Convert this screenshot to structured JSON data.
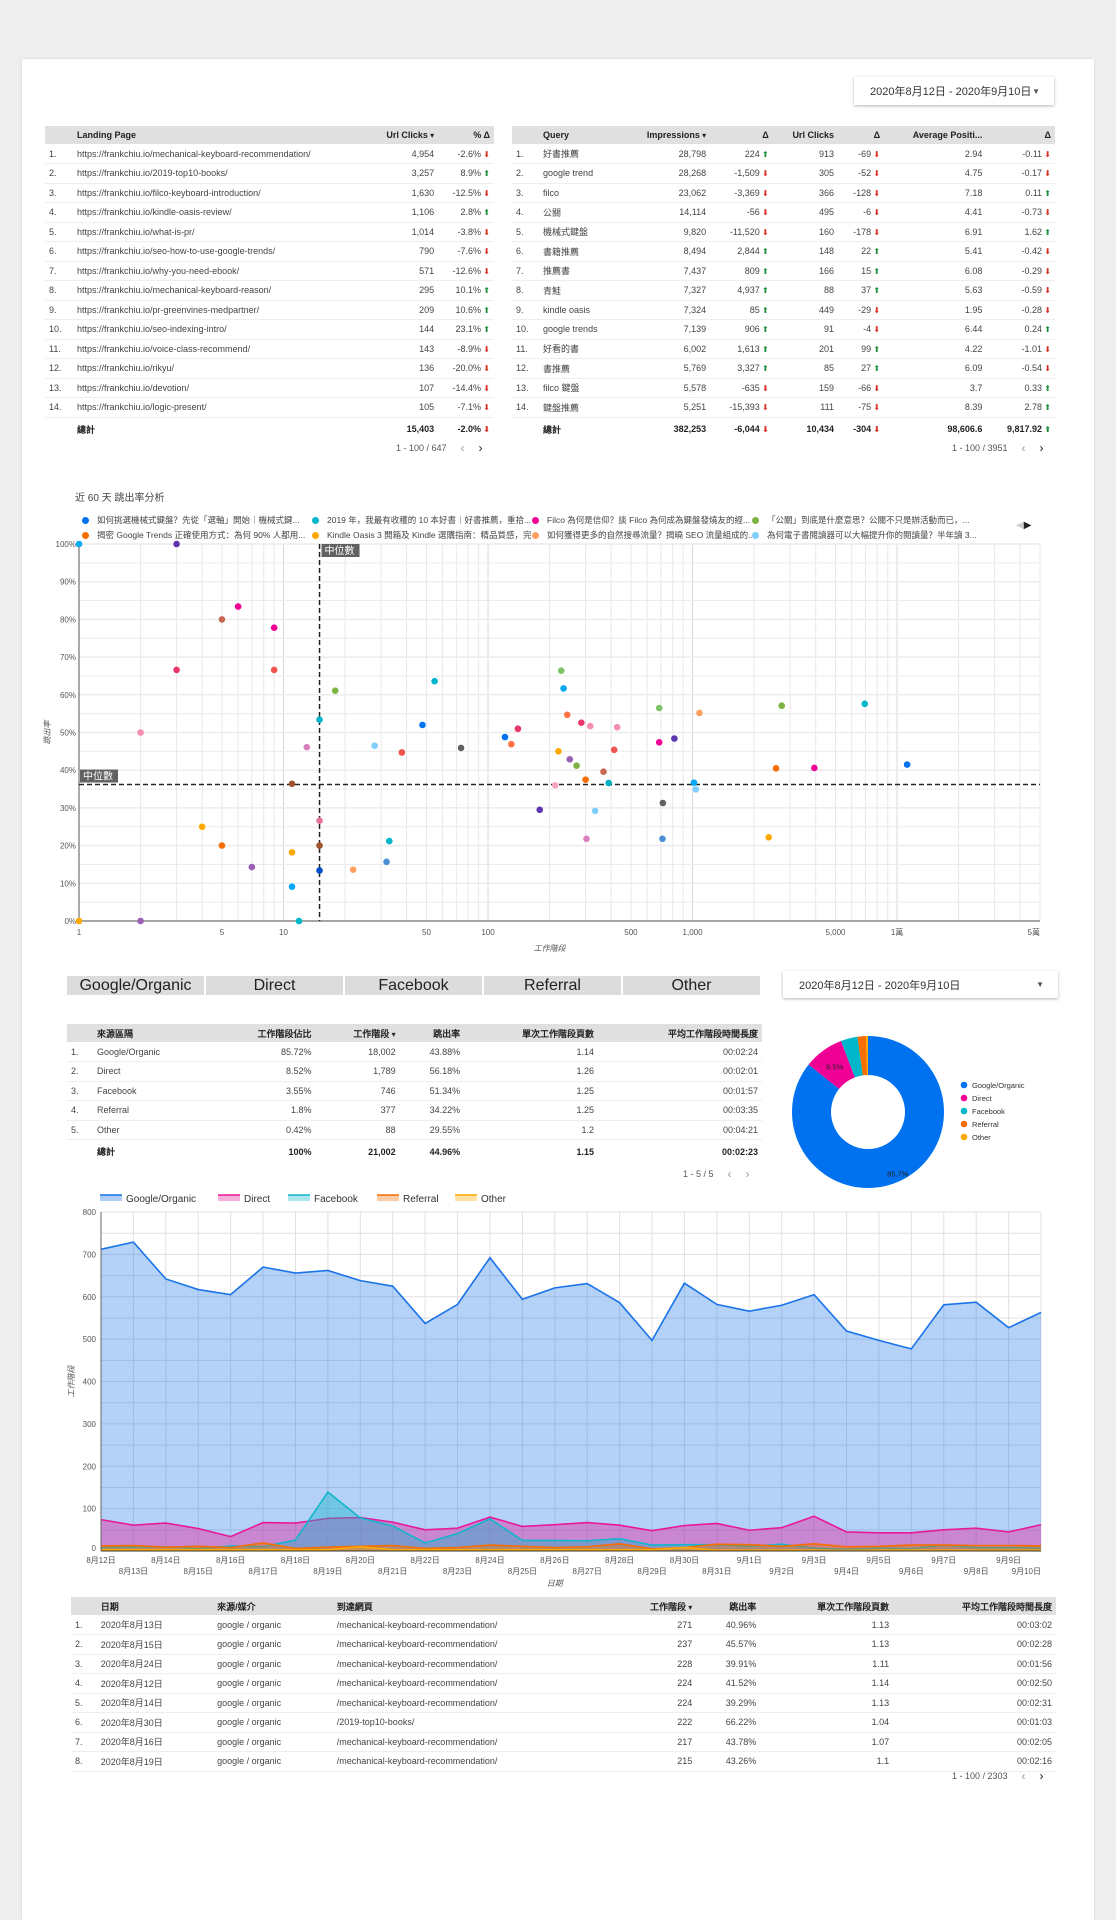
{
  "date_range": "2020年8月12日 - 2020年9月10日",
  "landing_table": {
    "headers": [
      "Landing Page",
      "Url Clicks",
      "% Δ"
    ],
    "rows": [
      [
        "1.",
        "https://frankchiu.io/mechanical-keyboard-recommendation/",
        "4,954",
        "-2.6%",
        "down"
      ],
      [
        "2.",
        "https://frankchiu.io/2019-top10-books/",
        "3,257",
        "8.9%",
        "up"
      ],
      [
        "3.",
        "https://frankchiu.io/filco-keyboard-introduction/",
        "1,630",
        "-12.5%",
        "down"
      ],
      [
        "4.",
        "https://frankchiu.io/kindle-oasis-review/",
        "1,106",
        "2.8%",
        "up"
      ],
      [
        "5.",
        "https://frankchiu.io/what-is-pr/",
        "1,014",
        "-3.8%",
        "down"
      ],
      [
        "6.",
        "https://frankchiu.io/seo-how-to-use-google-trends/",
        "790",
        "-7.6%",
        "down"
      ],
      [
        "7.",
        "https://frankchiu.io/why-you-need-ebook/",
        "571",
        "-12.6%",
        "down"
      ],
      [
        "8.",
        "https://frankchiu.io/mechanical-keyboard-reason/",
        "295",
        "10.1%",
        "up"
      ],
      [
        "9.",
        "https://frankchiu.io/pr-greenvines-medpartner/",
        "209",
        "10.6%",
        "up"
      ],
      [
        "10.",
        "https://frankchiu.io/seo-indexing-intro/",
        "144",
        "23.1%",
        "up"
      ],
      [
        "11.",
        "https://frankchiu.io/voice-class-recommend/",
        "143",
        "-8.9%",
        "down"
      ],
      [
        "12.",
        "https://frankchiu.io/rikyu/",
        "136",
        "-20.0%",
        "down"
      ],
      [
        "13.",
        "https://frankchiu.io/devotion/",
        "107",
        "-14.4%",
        "down"
      ],
      [
        "14.",
        "https://frankchiu.io/logic-present/",
        "105",
        "-7.1%",
        "down"
      ]
    ],
    "total": [
      "總計",
      "15,403",
      "-2.0%",
      "down"
    ],
    "pagination": "1 - 100 / 647"
  },
  "query_table": {
    "headers": [
      "Query",
      "Impressions",
      "Δ",
      "Url Clicks",
      "Δ",
      "Average Positi...",
      "Δ"
    ],
    "rows": [
      [
        "1.",
        "好書推薦",
        "28,798",
        "224",
        "up",
        "913",
        "-69",
        "down",
        "2.94",
        "-0.11",
        "down"
      ],
      [
        "2.",
        "google trend",
        "28,268",
        "-1,509",
        "down",
        "305",
        "-52",
        "down",
        "4.75",
        "-0.17",
        "down"
      ],
      [
        "3.",
        "filco",
        "23,062",
        "-3,369",
        "down",
        "366",
        "-128",
        "down",
        "7.18",
        "0.11",
        "up"
      ],
      [
        "4.",
        "公關",
        "14,114",
        "-56",
        "down",
        "495",
        "-6",
        "down",
        "4.41",
        "-0.73",
        "down"
      ],
      [
        "5.",
        "機械式鍵盤",
        "9,820",
        "-11,520",
        "down",
        "160",
        "-178",
        "down",
        "6.91",
        "1.62",
        "up"
      ],
      [
        "6.",
        "書籍推薦",
        "8,494",
        "2,844",
        "up",
        "148",
        "22",
        "up",
        "5.41",
        "-0.42",
        "down"
      ],
      [
        "7.",
        "推薦書",
        "7,437",
        "809",
        "up",
        "166",
        "15",
        "up",
        "6.08",
        "-0.29",
        "down"
      ],
      [
        "8.",
        "青鮭",
        "7,327",
        "4,937",
        "up",
        "88",
        "37",
        "up",
        "5.63",
        "-0.59",
        "down"
      ],
      [
        "9.",
        "kindle oasis",
        "7,324",
        "85",
        "up",
        "449",
        "-29",
        "down",
        "1.95",
        "-0.28",
        "down"
      ],
      [
        "10.",
        "google trends",
        "7,139",
        "906",
        "up",
        "91",
        "-4",
        "down",
        "6.44",
        "0.24",
        "up"
      ],
      [
        "11.",
        "好看的書",
        "6,002",
        "1,613",
        "up",
        "201",
        "99",
        "up",
        "4.22",
        "-1.01",
        "down"
      ],
      [
        "12.",
        "書推薦",
        "5,769",
        "3,327",
        "up",
        "85",
        "27",
        "up",
        "6.09",
        "-0.54",
        "down"
      ],
      [
        "13.",
        "filco 鍵盤",
        "5,578",
        "-635",
        "down",
        "159",
        "-66",
        "down",
        "3.7",
        "0.33",
        "up"
      ],
      [
        "14.",
        "鍵盤推薦",
        "5,251",
        "-15,393",
        "down",
        "111",
        "-75",
        "down",
        "8.39",
        "2.78",
        "up"
      ]
    ],
    "total": [
      "總計",
      "382,253",
      "-6,044",
      "down",
      "10,434",
      "-304",
      "down",
      "98,606.6",
      "9,817.92",
      "up"
    ],
    "pagination": "1 - 100 / 3951"
  },
  "scatter": {
    "title": "近 60 天 跳出率分析",
    "legend": [
      {
        "label": "如何挑選機械式鍵盤？先從「選軸」開始｜機械式鍵...",
        "color": "#0072f0"
      },
      {
        "label": "2019 年，我最有收穫的 10 本好書｜好書推薦，重拾...",
        "color": "#00b6cb"
      },
      {
        "label": "Filco 為何是信仰？談 Filco 為何成為鍵盤發燒友的經...",
        "color": "#f10096"
      },
      {
        "label": "「公關」到底是什麼意思？公關不只是辦活動而已，...",
        "color": "#7cb342"
      },
      {
        "label": "揭密 Google Trends 正確使用方式：為何 90% 人都用...",
        "color": "#f66d00"
      },
      {
        "label": "Kindle Oasis 3 開箱及 Kindle 選購指南：精品質感，完...",
        "color": "#ffa800"
      },
      {
        "label": "如何獲得更多的自然搜尋流量？揭曉 SEO 流量組成的...",
        "color": "#ffa060"
      },
      {
        "label": "為何電子書閱讀器可以大幅提升你的閱讀量？半年讀 3...",
        "color": "#7fd0ff"
      }
    ],
    "chart_data": {
      "type": "scatter",
      "xlabel": "工作階段",
      "ylabel": "跳出率",
      "x_scale": "log",
      "xlim": [
        1,
        50000
      ],
      "ylim": [
        0,
        100
      ],
      "x_ticks": [
        "1",
        "5",
        "10",
        "50",
        "100",
        "500",
        "1,000",
        "5,000",
        "1萬",
        "5萬"
      ],
      "y_ticks": [
        "0%",
        "10%",
        "20%",
        "30%",
        "40%",
        "50%",
        "60%",
        "70%",
        "80%",
        "90%",
        "100%"
      ],
      "median_label": "中位數",
      "median_x": 15,
      "median_y": 36.2,
      "points": [
        [
          1,
          100,
          "#03a9f4"
        ],
        [
          3,
          100,
          "#5e35b1"
        ],
        [
          6,
          83.4,
          "#f10096"
        ],
        [
          5,
          80,
          "#c8674f"
        ],
        [
          9,
          77.8,
          "#f10096"
        ],
        [
          3,
          66.6,
          "#e8356a"
        ],
        [
          9,
          66.6,
          "#ef5350"
        ],
        [
          17.9,
          61.1,
          "#7cb342"
        ],
        [
          54.8,
          63.6,
          "#00b6cb"
        ],
        [
          15,
          53.4,
          "#00b6cb"
        ],
        [
          47.8,
          52,
          "#0072f0"
        ],
        [
          2,
          50,
          "#f48fb1"
        ],
        [
          13,
          46.1,
          "#d77fbf"
        ],
        [
          27.9,
          46.5,
          "#7fd0ff"
        ],
        [
          37.9,
          44.7,
          "#ef5350"
        ],
        [
          73.8,
          45.9,
          "#616161"
        ],
        [
          11,
          36.4,
          "#a0522d"
        ],
        [
          15,
          26.6,
          "#e57399"
        ],
        [
          4,
          25,
          "#ffa800"
        ],
        [
          5,
          20,
          "#f66d00"
        ],
        [
          15,
          20,
          "#a0522d"
        ],
        [
          11,
          18.2,
          "#ffa800"
        ],
        [
          7,
          14.3,
          "#9c5fb5"
        ],
        [
          15,
          13.4,
          "#0050c8"
        ],
        [
          21.9,
          13.6,
          "#ffa060"
        ],
        [
          32.9,
          21.2,
          "#00b6cb"
        ],
        [
          31.9,
          15.7,
          "#4a8fd4"
        ],
        [
          11,
          9.1,
          "#03a9f4"
        ],
        [
          11.9,
          0,
          "#00b6cb"
        ],
        [
          2,
          0,
          "#9c5fb5"
        ],
        [
          1,
          0,
          "#ffa800"
        ],
        [
          228,
          66.4,
          "#7cc36a"
        ],
        [
          234,
          61.7,
          "#03a9f4"
        ],
        [
          244,
          54.7,
          "#ff7043"
        ],
        [
          286,
          52.6,
          "#e8356a"
        ],
        [
          316,
          51.7,
          "#f48fb1"
        ],
        [
          428,
          51.4,
          "#f48fb1"
        ],
        [
          140,
          51,
          "#e8356a"
        ],
        [
          121,
          48.8,
          "#0072f0"
        ],
        [
          130,
          46.9,
          "#ff7043"
        ],
        [
          221,
          45,
          "#ffa800"
        ],
        [
          251,
          42.9,
          "#9c5fb5"
        ],
        [
          271,
          41.2,
          "#7cb342"
        ],
        [
          367,
          39.6,
          "#c8674f"
        ],
        [
          414,
          45.4,
          "#ef5350"
        ],
        [
          300,
          37.5,
          "#f66d00"
        ],
        [
          213,
          36,
          "#f8a5c2"
        ],
        [
          389,
          36.6,
          "#00acc1"
        ],
        [
          179,
          29.5,
          "#5e35b1"
        ],
        [
          334,
          29.2,
          "#7fd0ff"
        ],
        [
          303,
          21.8,
          "#d77fbf"
        ],
        [
          687,
          56.5,
          "#7cc36a"
        ],
        [
          687,
          47.4,
          "#f10096"
        ],
        [
          815,
          48.4,
          "#5e35b1"
        ],
        [
          716,
          31.3,
          "#616161"
        ],
        [
          713,
          21.8,
          "#4a8fd4"
        ],
        [
          1081,
          55.2,
          "#ffa060"
        ],
        [
          1016,
          36.7,
          "#03a9f4"
        ],
        [
          1038,
          34.9,
          "#7fd0ff"
        ],
        [
          2730,
          57.1,
          "#7cb342"
        ],
        [
          2560,
          40.5,
          "#f66d00"
        ],
        [
          3940,
          40.6,
          "#f10096"
        ],
        [
          2356,
          22.2,
          "#ffa800"
        ],
        [
          6950,
          57.6,
          "#00b6cb"
        ],
        [
          11200,
          41.5,
          "#0072f0"
        ]
      ]
    }
  },
  "source_tabs": [
    "Google/Organic",
    "Direct",
    "Facebook",
    "Referral",
    "Other"
  ],
  "source_table": {
    "headers": [
      "來源區隔",
      "工作階段佔比",
      "工作階段",
      "跳出率",
      "單次工作階段頁數",
      "平均工作階段時間長度"
    ],
    "rows": [
      [
        "1.",
        "Google/Organic",
        "85.72%",
        "18,002",
        "43.88%",
        "1.14",
        "00:02:24"
      ],
      [
        "2.",
        "Direct",
        "8.52%",
        "1,789",
        "56.18%",
        "1.26",
        "00:02:01"
      ],
      [
        "3.",
        "Facebook",
        "3.55%",
        "746",
        "51.34%",
        "1.25",
        "00:01:57"
      ],
      [
        "4.",
        "Referral",
        "1.8%",
        "377",
        "34.22%",
        "1.25",
        "00:03:35"
      ],
      [
        "5.",
        "Other",
        "0.42%",
        "88",
        "29.55%",
        "1.2",
        "00:04:21"
      ]
    ],
    "total": [
      "總計",
      "100%",
      "21,002",
      "44.96%",
      "1.15",
      "00:02:23"
    ],
    "pagination": "1 - 5 / 5"
  },
  "donut": {
    "chart_data": {
      "type": "pie",
      "labels": [
        "Google/Organic",
        "Direct",
        "Facebook",
        "Referral",
        "Other"
      ],
      "values": [
        85.72,
        8.52,
        3.55,
        1.8,
        0.42
      ],
      "data_labels": [
        "85.7%",
        "8.5%",
        "",
        "",
        ""
      ],
      "colors": [
        "#0072f0",
        "#f10096",
        "#00b6cb",
        "#f66d00",
        "#ffa800"
      ]
    }
  },
  "area": {
    "chart_data": {
      "type": "area",
      "xlabel": "日期",
      "ylabel": "工作階段",
      "ylim": [
        0,
        800
      ],
      "y_ticks": [
        "0",
        "100",
        "200",
        "300",
        "400",
        "500",
        "600",
        "700",
        "800"
      ],
      "categories": [
        "8月12日",
        "8月13日",
        "8月14日",
        "8月15日",
        "8月16日",
        "8月17日",
        "8月18日",
        "8月19日",
        "8月20日",
        "8月21日",
        "8月22日",
        "8月23日",
        "8月24日",
        "8月25日",
        "8月26日",
        "8月27日",
        "8月28日",
        "8月29日",
        "8月30日",
        "8月31日",
        "9月1日",
        "9月2日",
        "9月3日",
        "9月4日",
        "9月5日",
        "9月6日",
        "9月7日",
        "9月8日",
        "9月9日",
        "9月10日"
      ],
      "series": [
        {
          "name": "Google/Organic",
          "color": "#1a73e8",
          "values": [
            712,
            729,
            642,
            617,
            605,
            670,
            656,
            662,
            638,
            625,
            537,
            582,
            692,
            594,
            621,
            631,
            586,
            497,
            632,
            582,
            566,
            580,
            605,
            519,
            497,
            477,
            581,
            587,
            527,
            563
          ]
        },
        {
          "name": "Direct",
          "color": "#e8199a",
          "values": [
            74,
            61,
            66,
            53,
            34,
            67,
            66,
            77,
            79,
            68,
            50,
            54,
            80,
            58,
            62,
            67,
            61,
            48,
            60,
            65,
            49,
            55,
            82,
            45,
            43,
            43,
            50,
            54,
            45,
            62
          ]
        },
        {
          "name": "Facebook",
          "color": "#12b5cb",
          "values": [
            8,
            9,
            10,
            5,
            12,
            10,
            26,
            139,
            78,
            59,
            19,
            41,
            76,
            25,
            25,
            24,
            29,
            14,
            15,
            15,
            11,
            16,
            7,
            4,
            7,
            6,
            14,
            8,
            8,
            7
          ]
        },
        {
          "name": "Referral",
          "color": "#f66d00",
          "values": [
            12,
            13,
            9,
            11,
            8,
            19,
            6,
            9,
            11,
            13,
            6,
            8,
            14,
            11,
            8,
            10,
            17,
            5,
            8,
            16,
            15,
            11,
            17,
            10,
            11,
            14,
            14,
            13,
            13,
            12
          ]
        },
        {
          "name": "Other",
          "color": "#ffa800",
          "values": [
            3,
            3,
            3,
            3,
            3,
            3,
            3,
            3,
            10,
            3,
            3,
            3,
            3,
            3,
            3,
            3,
            3,
            3,
            8,
            2,
            2,
            2,
            2,
            1,
            2,
            2,
            2,
            2,
            2,
            2
          ]
        }
      ]
    }
  },
  "detail_table": {
    "headers": [
      "日期",
      "來源/媒介",
      "到達網頁",
      "工作階段",
      "跳出率",
      "單次工作階段頁數",
      "平均工作階段時間長度"
    ],
    "rows": [
      [
        "1.",
        "2020年8月13日",
        "google / organic",
        "/mechanical-keyboard-recommendation/",
        "271",
        "40.96%",
        "1.13",
        "00:03:02"
      ],
      [
        "2.",
        "2020年8月15日",
        "google / organic",
        "/mechanical-keyboard-recommendation/",
        "237",
        "45.57%",
        "1.13",
        "00:02:28"
      ],
      [
        "3.",
        "2020年8月24日",
        "google / organic",
        "/mechanical-keyboard-recommendation/",
        "228",
        "39.91%",
        "1.11",
        "00:01:56"
      ],
      [
        "4.",
        "2020年8月12日",
        "google / organic",
        "/mechanical-keyboard-recommendation/",
        "224",
        "41.52%",
        "1.14",
        "00:02:50"
      ],
      [
        "5.",
        "2020年8月14日",
        "google / organic",
        "/mechanical-keyboard-recommendation/",
        "224",
        "39.29%",
        "1.13",
        "00:02:31"
      ],
      [
        "6.",
        "2020年8月30日",
        "google / organic",
        "/2019-top10-books/",
        "222",
        "66.22%",
        "1.04",
        "00:01:03"
      ],
      [
        "7.",
        "2020年8月16日",
        "google / organic",
        "/mechanical-keyboard-recommendation/",
        "217",
        "43.78%",
        "1.07",
        "00:02:05"
      ],
      [
        "8.",
        "2020年8月19日",
        "google / organic",
        "/mechanical-keyboard-recommendation/",
        "215",
        "43.26%",
        "1.1",
        "00:02:16"
      ]
    ],
    "pagination": "1 - 100 / 2303"
  },
  "sort_icon": "▾",
  "prev_icon": "‹",
  "next_icon": "›"
}
